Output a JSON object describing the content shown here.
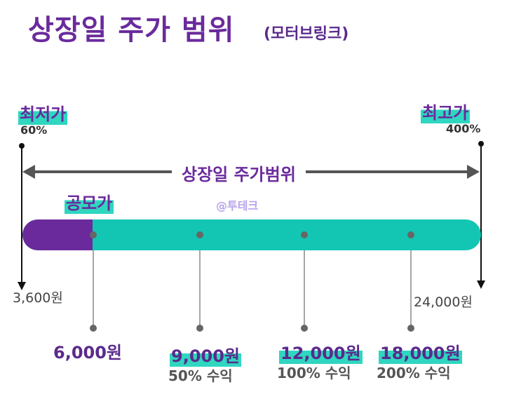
{
  "header": {
    "title": "상장일 주가 범위",
    "subtitle": "(모터브링크)"
  },
  "low": {
    "label": "최저가",
    "percent": "60%",
    "price": "3,600원"
  },
  "high": {
    "label": "최고가",
    "percent": "400%",
    "price": "24,000원"
  },
  "range_label": "상장일 주가범위",
  "offering_label": "공모가",
  "watermark": "@투테크",
  "markers": [
    {
      "price": "6,000원",
      "gain": ""
    },
    {
      "price": "9,000원",
      "gain": "50% 수익"
    },
    {
      "price": "12,000원",
      "gain": "100% 수익"
    },
    {
      "price": "18,000원",
      "gain": "200% 수익"
    }
  ],
  "colors": {
    "purple": "#6a2a9c",
    "teal": "#12c6b3",
    "highlight": "#2fd6c0"
  }
}
